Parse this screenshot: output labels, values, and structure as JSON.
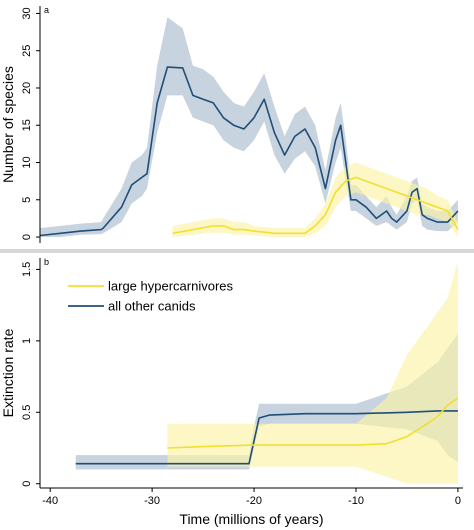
{
  "colors": {
    "other_line": "#1f4e79",
    "other_band": "#a9bccd",
    "hyper_line": "#f2df2e",
    "hyper_band": "#fbf3a6",
    "axis": "#000000",
    "divider": "#d6d6d6"
  },
  "chart_data": [
    {
      "type": "line",
      "panel": "a",
      "xlabel": "",
      "ylabel": "Number of species",
      "xlim": [
        -41,
        0.5
      ],
      "ylim": [
        -0.8,
        31
      ],
      "yticks": [
        0,
        5,
        10,
        15,
        20,
        25,
        30
      ],
      "series": [
        {
          "key": "other",
          "color_key": "other",
          "x": [
            -41,
            -39,
            -37,
            -35,
            -34.8,
            -33,
            -32,
            -31,
            -30.5,
            -29.5,
            -28.5,
            -27,
            -26,
            -25,
            -24,
            -23,
            -22,
            -21,
            -20,
            -19,
            -18,
            -17,
            -16,
            -15,
            -14,
            -13,
            -12,
            -11.5,
            -11,
            -10.5,
            -10,
            -9,
            -8,
            -7,
            -6.5,
            -6,
            -5,
            -4.5,
            -4,
            -3.5,
            -3,
            -2,
            -1,
            0
          ],
          "y": [
            0.2,
            0.5,
            0.8,
            1.0,
            1.2,
            4.0,
            7.0,
            8.0,
            8.5,
            18.0,
            22.8,
            22.7,
            19.0,
            18.5,
            18.0,
            16.0,
            15.0,
            14.5,
            16.0,
            18.5,
            14.0,
            11.0,
            13.5,
            14.5,
            12.0,
            6.5,
            13.0,
            15.0,
            10.0,
            5.0,
            5.0,
            4.0,
            2.5,
            3.5,
            2.5,
            2.0,
            3.5,
            6.0,
            6.5,
            3.0,
            2.5,
            2.0,
            2.0,
            3.5
          ],
          "lower": [
            0,
            0,
            0.3,
            0.4,
            0.5,
            2.0,
            4.5,
            5.5,
            6.5,
            14.0,
            19.0,
            19.0,
            16.0,
            15.5,
            15.0,
            13.0,
            12.0,
            11.5,
            13.0,
            15.5,
            11.0,
            8.5,
            10.5,
            11.5,
            9.5,
            4.5,
            10.0,
            12.0,
            7.5,
            3.5,
            3.5,
            2.5,
            1.5,
            2.0,
            1.5,
            1.0,
            2.0,
            4.5,
            5.0,
            1.5,
            1.0,
            0.8,
            0.8,
            2.0
          ],
          "upper": [
            1.2,
            1.5,
            1.8,
            2.0,
            2.5,
            6.5,
            10.0,
            11.0,
            12.0,
            23.0,
            29.5,
            28.0,
            23.0,
            22.5,
            21.5,
            19.5,
            18.0,
            17.5,
            19.5,
            22.0,
            17.5,
            13.5,
            16.5,
            17.5,
            15.0,
            9.0,
            16.0,
            18.0,
            13.0,
            7.0,
            7.0,
            5.5,
            4.0,
            5.5,
            4.0,
            3.0,
            5.5,
            7.5,
            8.0,
            4.5,
            4.0,
            3.5,
            3.5,
            5.0
          ]
        },
        {
          "key": "hyper",
          "color_key": "hyper",
          "x": [
            -28,
            -26,
            -24,
            -23,
            -22,
            -21,
            -20,
            -18,
            -16,
            -15,
            -14,
            -13,
            -12,
            -11,
            -10,
            -9,
            -8,
            -7,
            -6,
            -5,
            -4,
            -3,
            -2,
            -1,
            0
          ],
          "y": [
            0.5,
            1.0,
            1.5,
            1.5,
            1.0,
            1.0,
            0.8,
            0.5,
            0.5,
            0.5,
            1.5,
            3.0,
            6.0,
            7.5,
            8.0,
            7.5,
            7.0,
            6.5,
            6.0,
            5.5,
            5.0,
            4.5,
            4.0,
            3.5,
            1.0
          ],
          "lower": [
            0,
            0.3,
            0.6,
            0.6,
            0.3,
            0.3,
            0.2,
            0,
            0,
            0,
            0.5,
            1.5,
            4.0,
            5.5,
            6.0,
            5.5,
            5.0,
            4.5,
            4.0,
            3.5,
            3.0,
            3.0,
            2.5,
            2.0,
            0
          ],
          "upper": [
            1.5,
            2.0,
            2.5,
            2.5,
            2.0,
            2.0,
            1.5,
            1.2,
            1.2,
            1.2,
            2.5,
            4.5,
            8.0,
            9.5,
            10.0,
            9.5,
            9.0,
            8.5,
            8.0,
            7.5,
            7.0,
            6.5,
            5.5,
            5.0,
            2.0
          ]
        }
      ]
    },
    {
      "type": "line",
      "panel": "b",
      "xlabel": "Time (millions of years)",
      "ylabel": "Extinction rate",
      "xlim": [
        -41,
        0.5
      ],
      "ylim": [
        -0.03,
        1.58
      ],
      "yticks": [
        0,
        0.5,
        1,
        1.5
      ],
      "xticks": [
        -40,
        -30,
        -20,
        -10,
        0
      ],
      "legend": {
        "placement": "top-left",
        "entries": [
          {
            "label": "large hypercarnivores",
            "color_key": "hyper"
          },
          {
            "label": "all other canids",
            "color_key": "other"
          }
        ]
      },
      "series": [
        {
          "key": "other",
          "color_key": "other",
          "x": [
            -37.5,
            -27.5,
            -22.5,
            -21,
            -20.5,
            -20,
            -19.5,
            -18.5,
            -15,
            -10,
            -5,
            -2,
            -1,
            0
          ],
          "y": [
            0.14,
            0.14,
            0.14,
            0.14,
            0.14,
            0.3,
            0.46,
            0.48,
            0.49,
            0.49,
            0.5,
            0.51,
            0.51,
            0.51
          ],
          "lower": [
            0.1,
            0.1,
            0.1,
            0.1,
            0.1,
            0.25,
            0.4,
            0.42,
            0.42,
            0.42,
            0.38,
            0.3,
            0.2,
            0.15
          ],
          "upper": [
            0.2,
            0.2,
            0.2,
            0.2,
            0.2,
            0.4,
            0.56,
            0.56,
            0.56,
            0.56,
            0.68,
            0.85,
            0.95,
            1.05
          ]
        },
        {
          "key": "hyper",
          "color_key": "hyper",
          "x": [
            -28.5,
            -25,
            -20,
            -15,
            -10,
            -7,
            -5,
            -3,
            -2,
            -1,
            0
          ],
          "y": [
            0.25,
            0.26,
            0.27,
            0.27,
            0.27,
            0.28,
            0.33,
            0.42,
            0.47,
            0.55,
            0.6
          ],
          "lower": [
            0.12,
            0.12,
            0.12,
            0.12,
            0.12,
            0.05,
            0.0,
            0.0,
            0.0,
            0.0,
            0.0
          ],
          "upper": [
            0.42,
            0.42,
            0.42,
            0.42,
            0.42,
            0.6,
            0.9,
            1.1,
            1.2,
            1.3,
            1.56
          ]
        }
      ]
    }
  ]
}
